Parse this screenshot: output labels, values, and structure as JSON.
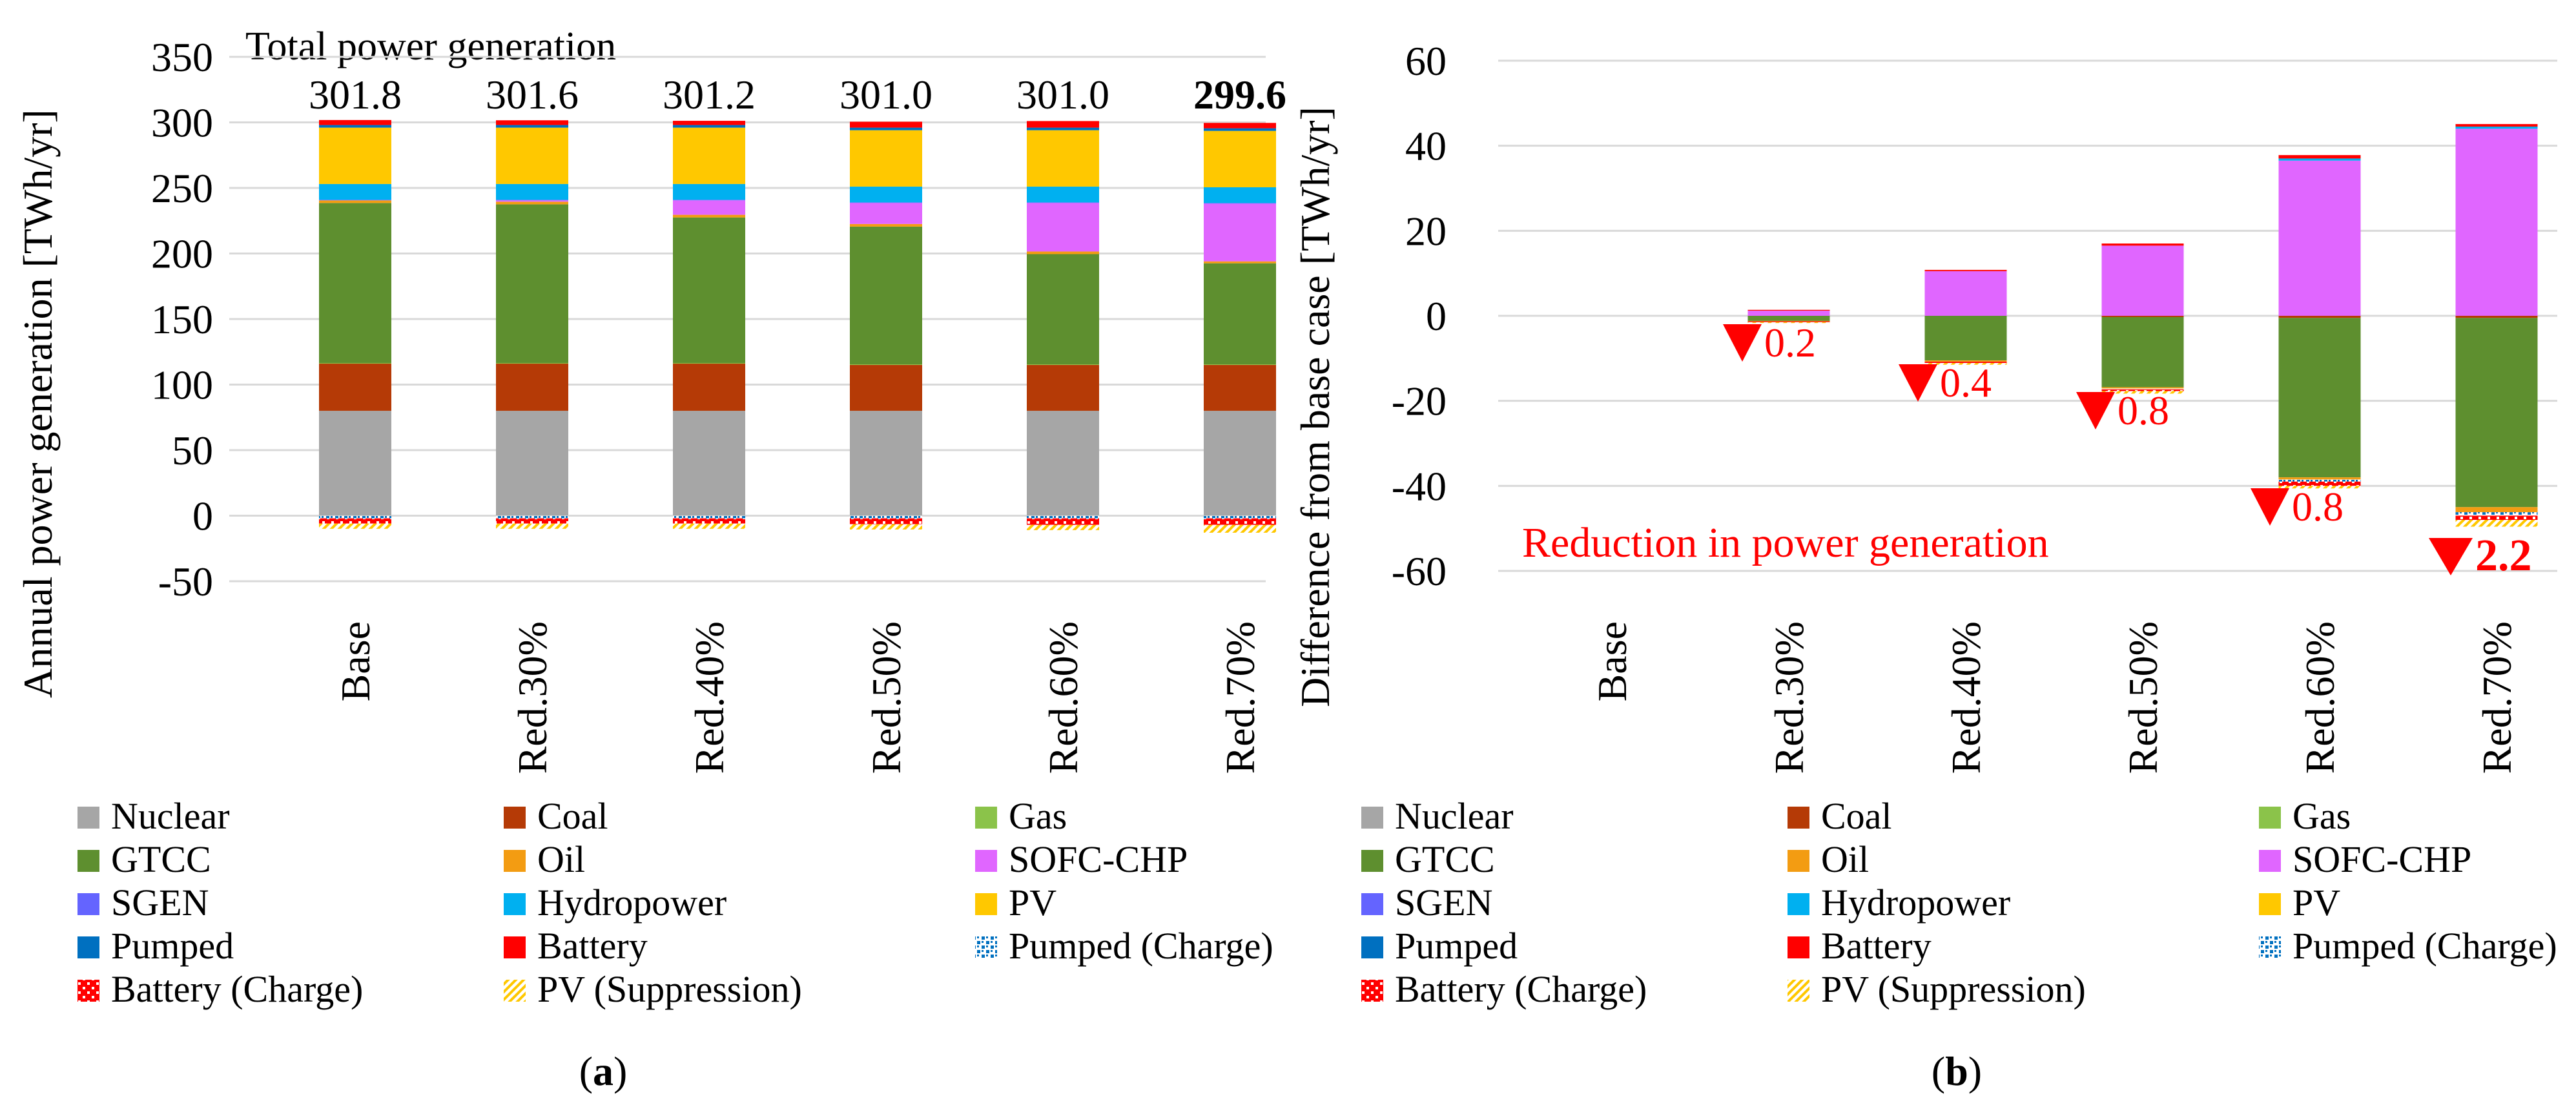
{
  "figure": {
    "panel_a_label": "a",
    "panel_b_label": "b",
    "colors": {
      "Nuclear": "#a6a6a6",
      "Coal": "#b53a06",
      "Gas": "#8bc34a",
      "GTCC": "#5e8f2f",
      "Oil": "#f39c12",
      "SOFC-CHP": "#e066ff",
      "SGEN": "#6464ff",
      "Hydropower": "#00b0f0",
      "PV": "#ffc800",
      "Pumped": "#0070c0",
      "Battery": "#ff0000",
      "Pumped (Charge)": "#0070c0",
      "Battery (Charge)": "#ff0000",
      "PV (Suppression)": "#ffc800"
    }
  },
  "chart_data": [
    {
      "type": "bar",
      "stacked": true,
      "panel": "a",
      "ylabel": "Annual power generation [TWh/yr]",
      "ylim": [
        -50,
        350
      ],
      "yticks": [
        -50,
        0,
        50,
        100,
        150,
        200,
        250,
        300,
        350
      ],
      "categories": [
        "Base",
        "Red.30%",
        "Red.40%",
        "Red.50%",
        "Red.60%",
        "Red.70%"
      ],
      "annotation_title": "Total power generation",
      "totals": [
        "301.8",
        "301.6",
        "301.2",
        "301.0",
        "301.0",
        "299.6"
      ],
      "totals_bold_index": 5,
      "legend": [
        "Nuclear",
        "Coal",
        "Gas",
        "GTCC",
        "Oil",
        "SOFC-CHP",
        "SGEN",
        "Hydropower",
        "PV",
        "Pumped",
        "Battery",
        "Pumped (Charge)",
        "Battery (Charge)",
        "PV (Suppression)"
      ],
      "series": [
        {
          "name": "Nuclear",
          "values": [
            80,
            80,
            80,
            80,
            80,
            80
          ]
        },
        {
          "name": "Coal",
          "values": [
            36,
            36,
            36,
            35,
            35,
            35
          ]
        },
        {
          "name": "Gas",
          "values": [
            0.5,
            0.5,
            0.5,
            0.5,
            0.5,
            0.5
          ]
        },
        {
          "name": "GTCC",
          "values": [
            122,
            121,
            111,
            105,
            84,
            77
          ]
        },
        {
          "name": "Oil",
          "values": [
            2,
            2,
            2,
            2,
            2,
            1.5
          ]
        },
        {
          "name": "SOFC-CHP",
          "values": [
            0,
            1,
            11,
            16,
            37,
            44
          ]
        },
        {
          "name": "SGEN",
          "values": [
            0.5,
            0.5,
            0.5,
            0.5,
            0.5,
            0.5
          ]
        },
        {
          "name": "Hydropower",
          "values": [
            12,
            12,
            12,
            12,
            12,
            12
          ]
        },
        {
          "name": "PV",
          "values": [
            43,
            43,
            43,
            43,
            43,
            43
          ]
        },
        {
          "name": "Pumped",
          "values": [
            2,
            2,
            2,
            2,
            2,
            2
          ]
        },
        {
          "name": "Battery",
          "values": [
            3.8,
            3.6,
            3.2,
            4.5,
            5,
            4.1
          ]
        },
        {
          "name": "Pumped (Charge)",
          "values": [
            -2,
            -2,
            -2,
            -2,
            -2,
            -2
          ]
        },
        {
          "name": "Battery (Charge)",
          "values": [
            -4,
            -4,
            -4,
            -4.5,
            -5,
            -5
          ]
        },
        {
          "name": "PV (Suppression)",
          "values": [
            -4,
            -4,
            -4,
            -4,
            -4,
            -6
          ]
        }
      ]
    },
    {
      "type": "bar",
      "stacked": true,
      "panel": "b",
      "ylabel": "Difference from base case [TWh/yr]",
      "ylim": [
        -60,
        60
      ],
      "yticks": [
        -60,
        -40,
        -20,
        0,
        20,
        40,
        60
      ],
      "categories": [
        "Base",
        "Red.30%",
        "Red.40%",
        "Red.50%",
        "Red.60%",
        "Red.70%"
      ],
      "annotation_title": "Reduction in power generation",
      "reductions": [
        "",
        "0.2",
        "0.4",
        "0.8",
        "0.8",
        "2.2"
      ],
      "reduction_bold_index": 5,
      "legend": [
        "Nuclear",
        "Coal",
        "Gas",
        "GTCC",
        "Oil",
        "SOFC-CHP",
        "SGEN",
        "Hydropower",
        "PV",
        "Pumped",
        "Battery",
        "Pumped (Charge)",
        "Battery (Charge)",
        "PV (Suppression)"
      ],
      "series": [
        {
          "name": "Coal",
          "values": [
            0,
            0,
            0,
            -0.3,
            -0.5,
            -0.5
          ]
        },
        {
          "name": "GTCC",
          "values": [
            0,
            -1.2,
            -10.5,
            -16.5,
            -37.5,
            -44.5
          ]
        },
        {
          "name": "Oil",
          "values": [
            0,
            -0.1,
            -0.3,
            -0.3,
            -0.5,
            -1.2
          ]
        },
        {
          "name": "SOFC-CHP",
          "values": [
            0,
            1.2,
            10.5,
            16.5,
            36.5,
            44
          ]
        },
        {
          "name": "Hydropower",
          "values": [
            0,
            0,
            0,
            0,
            0.5,
            0.5
          ]
        },
        {
          "name": "Battery",
          "values": [
            0,
            0.2,
            0.3,
            0.5,
            0.8,
            0.6
          ]
        },
        {
          "name": "Pumped (Charge)",
          "values": [
            0,
            0,
            0,
            -0.2,
            -0.5,
            -0.8
          ]
        },
        {
          "name": "Battery (Charge)",
          "values": [
            0,
            -0.2,
            -0.3,
            -0.4,
            -1.0,
            -1.0
          ]
        },
        {
          "name": "PV (Suppression)",
          "values": [
            0,
            -0.2,
            -0.4,
            -0.6,
            -0.6,
            -1.6
          ]
        }
      ]
    }
  ]
}
